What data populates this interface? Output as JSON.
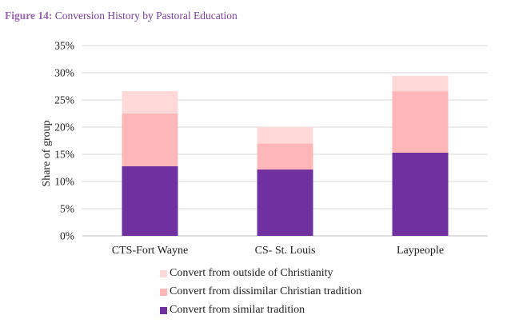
{
  "figure": {
    "label": "Figure 14:",
    "title": "Conversion History by Pastoral Education"
  },
  "chart_data": {
    "type": "bar",
    "stacked": true,
    "title": "Conversion History by Pastoral Education",
    "ylabel": "Share of group",
    "xlabel": "",
    "ylim": [
      0,
      35
    ],
    "yticks": [
      0,
      5,
      10,
      15,
      20,
      25,
      30,
      35
    ],
    "ytick_labels": [
      "0%",
      "5%",
      "10%",
      "15%",
      "20%",
      "25%",
      "30%",
      "35%"
    ],
    "categories": [
      "CTS-Fort Wayne",
      "CS- St. Louis",
      "Laypeople"
    ],
    "grid": true,
    "series": [
      {
        "name": "Convert from similar tradition",
        "color": "#7030a0",
        "values": [
          12.8,
          12.2,
          15.3
        ]
      },
      {
        "name": "Convert from dissimilar Christian tradition",
        "color": "#ffb6b8",
        "values": [
          9.7,
          4.8,
          11.3
        ]
      },
      {
        "name": "Convert from outside of Christianity",
        "color": "#ffd9d8",
        "values": [
          4.1,
          3.0,
          2.8
        ]
      }
    ],
    "legend_order": [
      2,
      1,
      0
    ],
    "legend_position": "bottom"
  }
}
